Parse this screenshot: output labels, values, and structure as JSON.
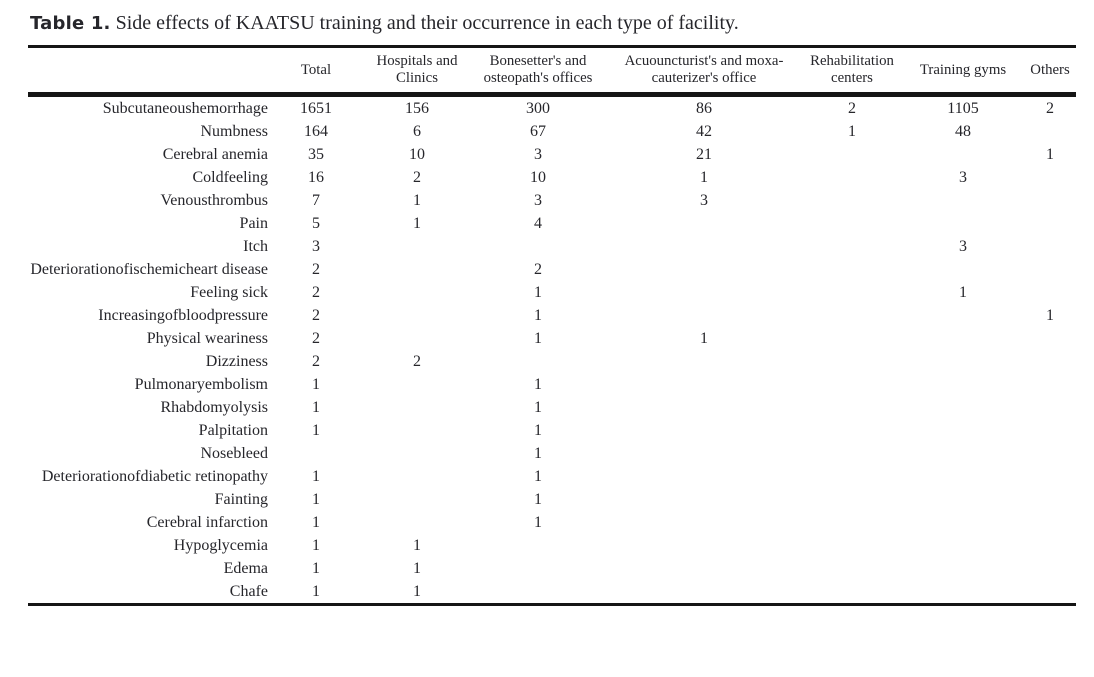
{
  "title": {
    "label": "Table 1.",
    "text": "Side effects of KAATSU training and their occurrence in each type of facility."
  },
  "table": {
    "columns": [
      "",
      "Total",
      "Hospitals and Clinics",
      "Bonesetter's and osteopath's offices",
      "Acuouncturist's and moxa-cauterizer's office",
      "Rehabilitation centers",
      "Training gyms",
      "Others"
    ],
    "rows": [
      {
        "label": "Subcutaneoushemorrhage",
        "values": [
          "1651",
          "156",
          "300",
          "86",
          "2",
          "1105",
          "2"
        ]
      },
      {
        "label": "Numbness",
        "values": [
          "164",
          "6",
          "67",
          "42",
          "1",
          "48",
          ""
        ]
      },
      {
        "label": "Cerebral anemia",
        "values": [
          "35",
          "10",
          "3",
          "21",
          "",
          "",
          "1"
        ]
      },
      {
        "label": "Coldfeeling",
        "values": [
          "16",
          "2",
          "10",
          "1",
          "",
          "3",
          ""
        ]
      },
      {
        "label": "Venousthrombus",
        "values": [
          "7",
          "1",
          "3",
          "3",
          "",
          "",
          ""
        ]
      },
      {
        "label": "Pain",
        "values": [
          "5",
          "1",
          "4",
          "",
          "",
          "",
          ""
        ]
      },
      {
        "label": "Itch",
        "values": [
          "3",
          "",
          "",
          "",
          "",
          "3",
          ""
        ]
      },
      {
        "label": "Deteriorationofischemicheart disease",
        "values": [
          "2",
          "",
          "2",
          "",
          "",
          "",
          ""
        ]
      },
      {
        "label": "Feeling sick",
        "values": [
          "2",
          "",
          "1",
          "",
          "",
          "1",
          ""
        ]
      },
      {
        "label": "Increasingofbloodpressure",
        "values": [
          "2",
          "",
          "1",
          "",
          "",
          "",
          "1"
        ]
      },
      {
        "label": "Physical weariness",
        "values": [
          "2",
          "",
          "1",
          "1",
          "",
          "",
          ""
        ]
      },
      {
        "label": "Dizziness",
        "values": [
          "2",
          "2",
          "",
          "",
          "",
          "",
          ""
        ]
      },
      {
        "label": "Pulmonaryembolism",
        "values": [
          "1",
          "",
          "1",
          "",
          "",
          "",
          ""
        ]
      },
      {
        "label": "Rhabdomyolysis",
        "values": [
          "1",
          "",
          "1",
          "",
          "",
          "",
          ""
        ]
      },
      {
        "label": "Palpitation",
        "values": [
          "1",
          "",
          "1",
          "",
          "",
          "",
          ""
        ]
      },
      {
        "label": "Nosebleed",
        "values": [
          "",
          "",
          "1",
          "",
          "",
          "",
          ""
        ]
      },
      {
        "label": "Deteriorationofdiabetic retinopathy",
        "values": [
          "1",
          "",
          "1",
          "",
          "",
          "",
          ""
        ]
      },
      {
        "label": "Fainting",
        "values": [
          "1",
          "",
          "1",
          "",
          "",
          "",
          ""
        ]
      },
      {
        "label": "Cerebral infarction",
        "values": [
          "1",
          "",
          "1",
          "",
          "",
          "",
          ""
        ]
      },
      {
        "label": "Hypoglycemia",
        "values": [
          "1",
          "1",
          "",
          "",
          "",
          "",
          ""
        ]
      },
      {
        "label": "Edema",
        "values": [
          "1",
          "1",
          "",
          "",
          "",
          "",
          ""
        ]
      },
      {
        "label": "Chafe",
        "values": [
          "1",
          "1",
          "",
          "",
          "",
          "",
          ""
        ]
      }
    ],
    "colors": {
      "text": "#26262b",
      "rule": "#151515",
      "background": "#ffffff"
    }
  }
}
